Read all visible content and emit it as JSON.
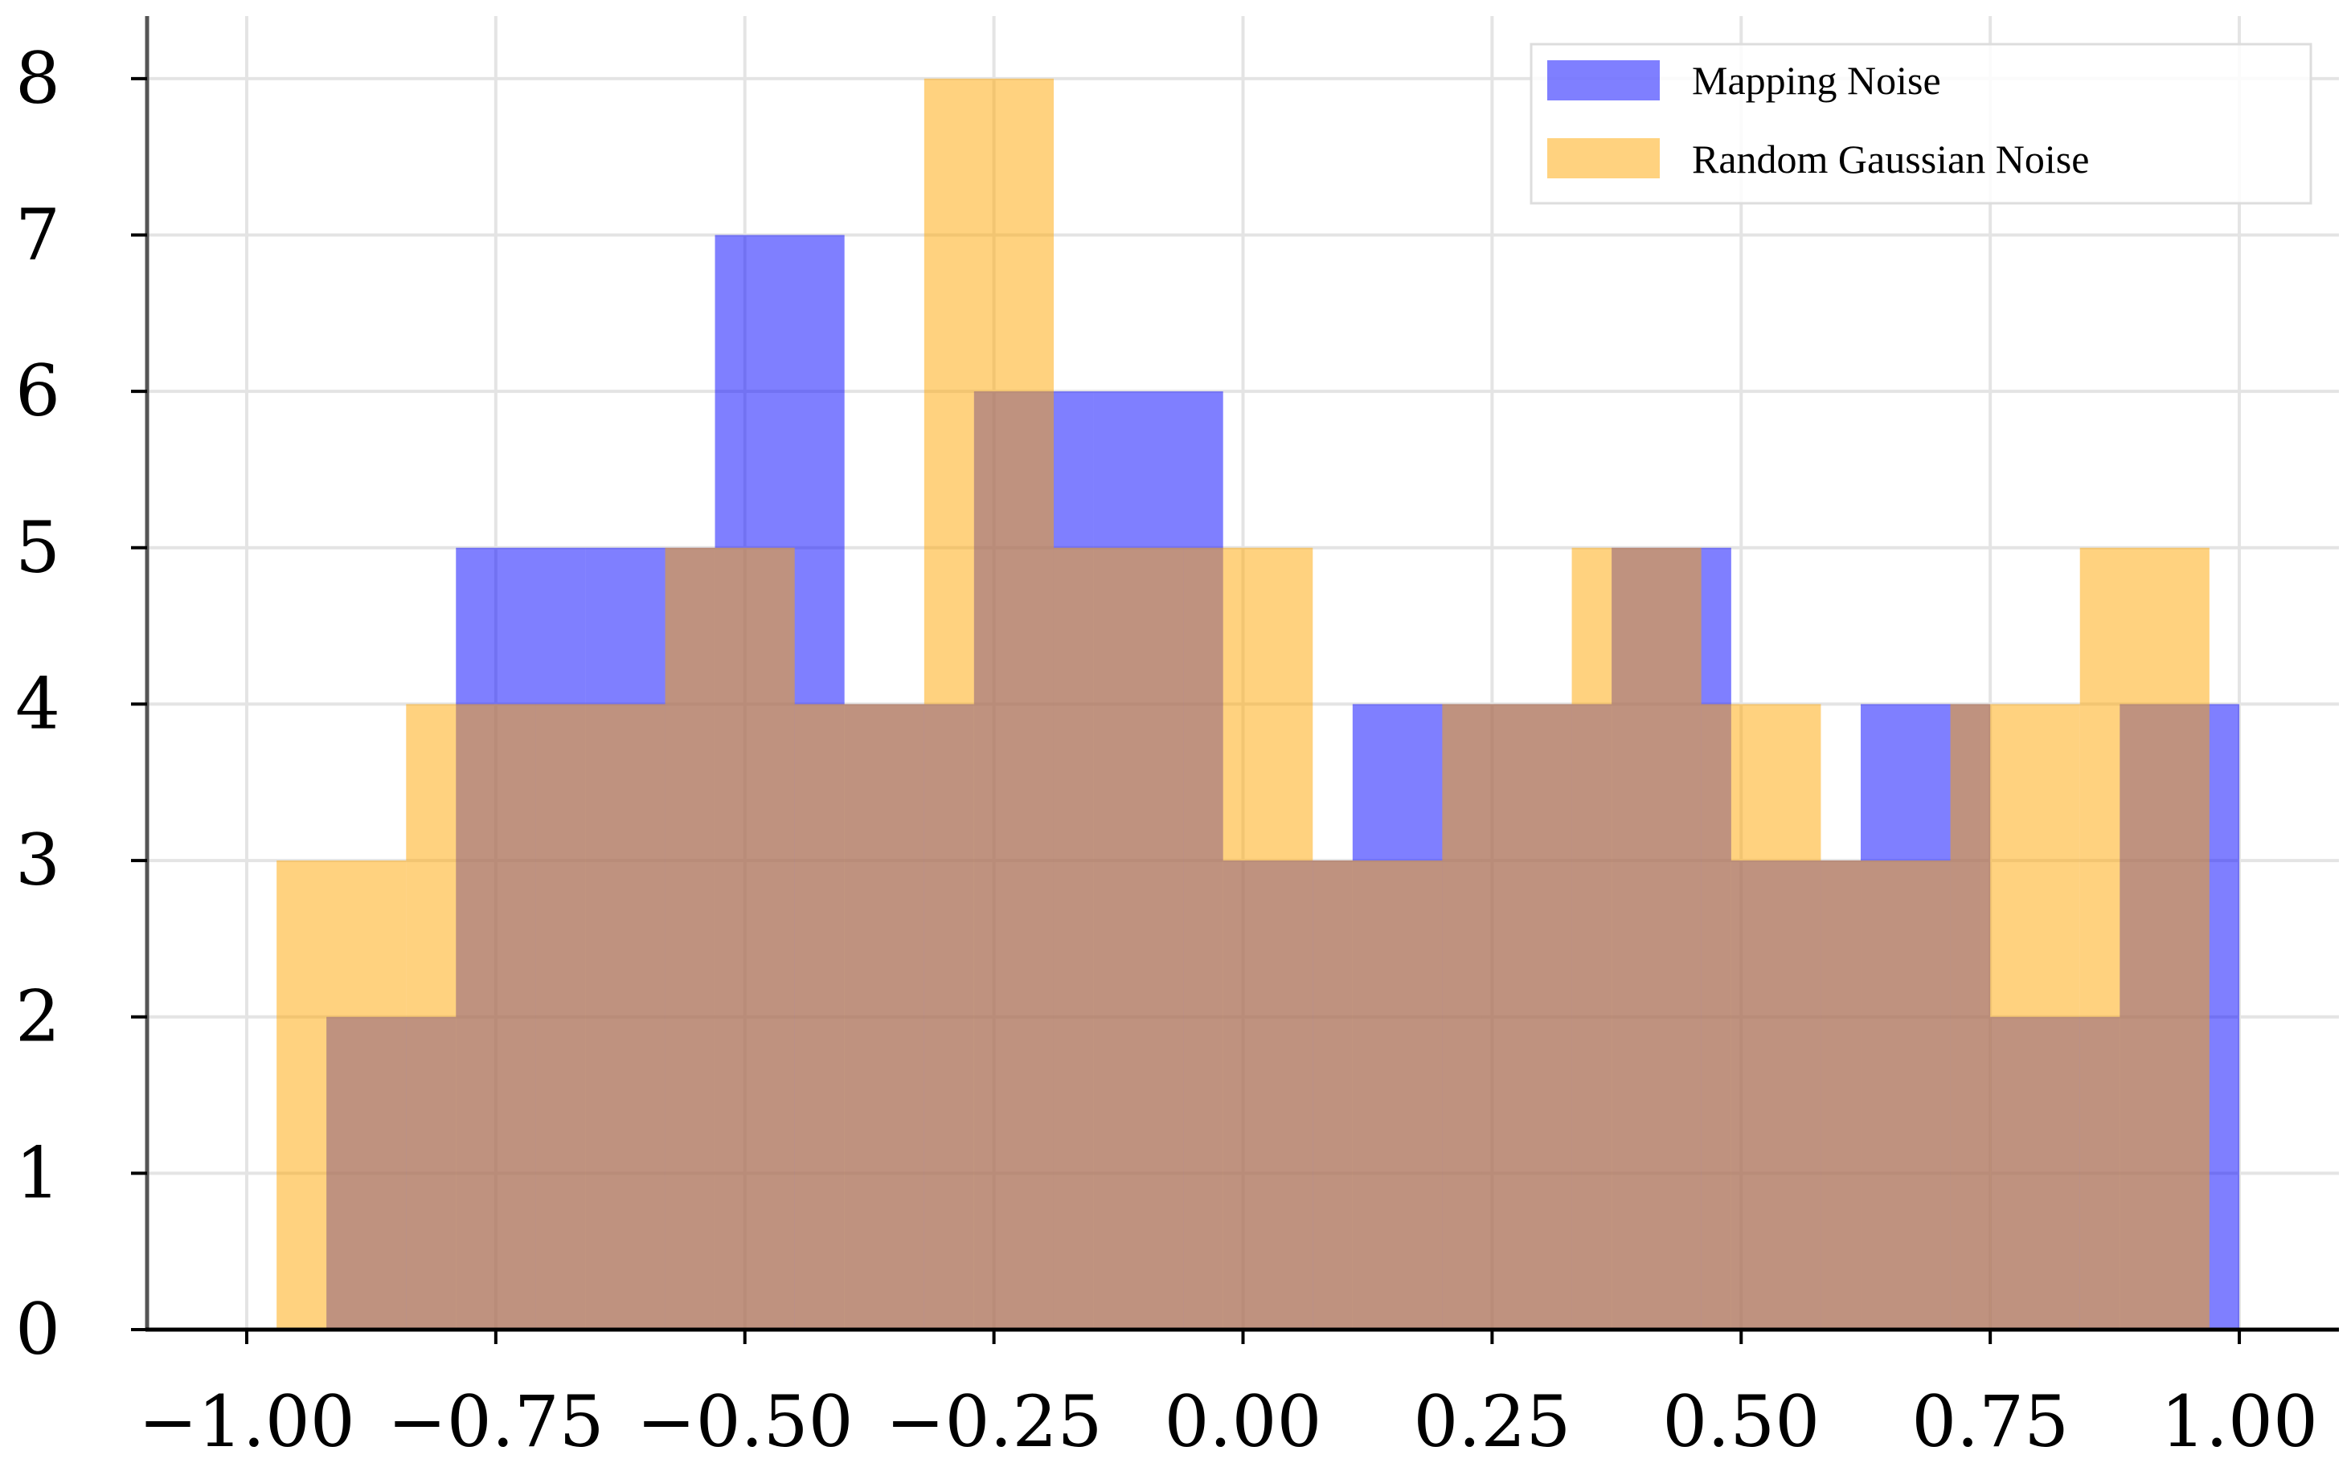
{
  "chart_data": {
    "type": "bar",
    "title": "",
    "xlabel": "",
    "ylabel": "",
    "xlim": [
      -1.1,
      1.1
    ],
    "ylim": [
      0,
      8.4
    ],
    "grid": true,
    "legend_position": "top-right",
    "xticks": [
      -1.0,
      -0.75,
      -0.5,
      -0.25,
      0.0,
      0.25,
      0.5,
      0.75,
      1.0
    ],
    "xtick_labels": [
      "−1.00",
      "−0.75",
      "−0.50",
      "−0.25",
      "0.00",
      "0.25",
      "0.50",
      "0.75",
      "1.00"
    ],
    "yticks": [
      0,
      1,
      2,
      3,
      4,
      5,
      6,
      7,
      8
    ],
    "ytick_labels": [
      "0",
      "1",
      "2",
      "3",
      "4",
      "5",
      "6",
      "7",
      "8"
    ],
    "series": [
      {
        "name": "Mapping Noise",
        "color": "#0000ff",
        "opacity": 0.5,
        "bin_edges": [
          -0.92,
          -0.79,
          -0.66,
          -0.53,
          -0.4,
          -0.27,
          -0.15,
          -0.02,
          0.11,
          0.24,
          0.37,
          0.49,
          0.62,
          0.75,
          0.88,
          1.0
        ],
        "counts": [
          2,
          5,
          5,
          7,
          4,
          6,
          6,
          3,
          4,
          4,
          5,
          3,
          4,
          2,
          4
        ]
      },
      {
        "name": "Random Gaussian Noise",
        "color": "#ffa500",
        "opacity": 0.5,
        "bin_edges": [
          -0.97,
          -0.84,
          -0.71,
          -0.58,
          -0.45,
          -0.32,
          -0.19,
          -0.06,
          0.07,
          0.2,
          0.33,
          0.46,
          0.58,
          0.71,
          0.84,
          0.97
        ],
        "counts": [
          3,
          4,
          4,
          5,
          4,
          8,
          5,
          5,
          3,
          4,
          5,
          4,
          3,
          4,
          5
        ]
      }
    ]
  }
}
